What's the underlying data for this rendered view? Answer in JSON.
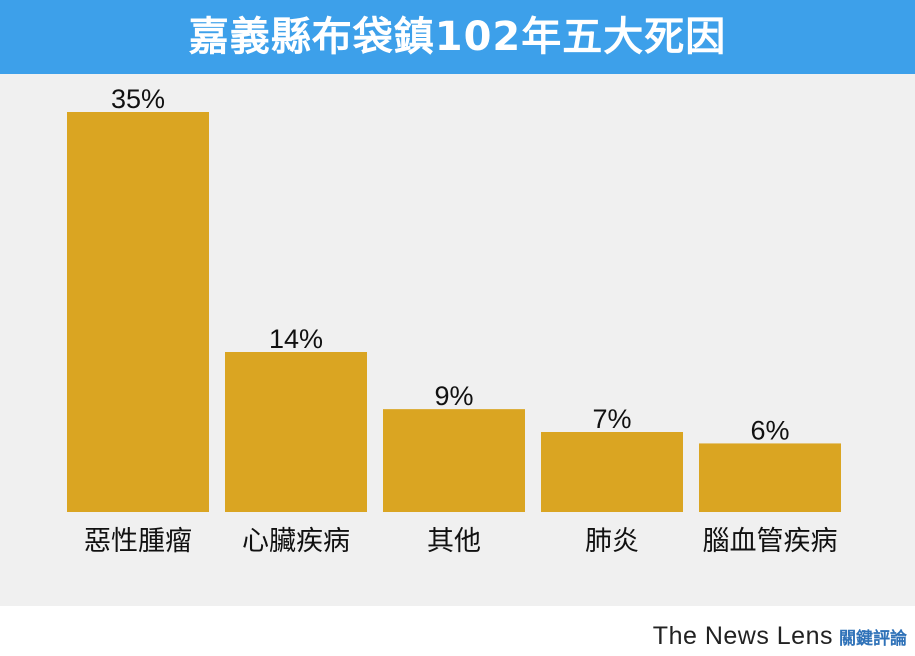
{
  "header": {
    "title": "嘉義縣布袋鎮102年五大死因"
  },
  "footer": {
    "brand_en": "The News Lens",
    "brand_zh": "關鍵評論"
  },
  "colors": {
    "bar": "#daa522",
    "header": "#3da0ea",
    "plot_bg": "#f0f0f0"
  },
  "chart_data": {
    "type": "bar",
    "title": "嘉義縣布袋鎮102年五大死因",
    "categories": [
      "惡性腫瘤",
      "心臟疾病",
      "其他",
      "肺炎",
      "腦血管疾病"
    ],
    "values": [
      35,
      14,
      9,
      7,
      6
    ],
    "value_labels": [
      "35%",
      "14%",
      "9%",
      "7%",
      "6%"
    ],
    "unit": "%",
    "ylim": [
      0,
      35
    ],
    "grid": false,
    "legend": "none"
  }
}
